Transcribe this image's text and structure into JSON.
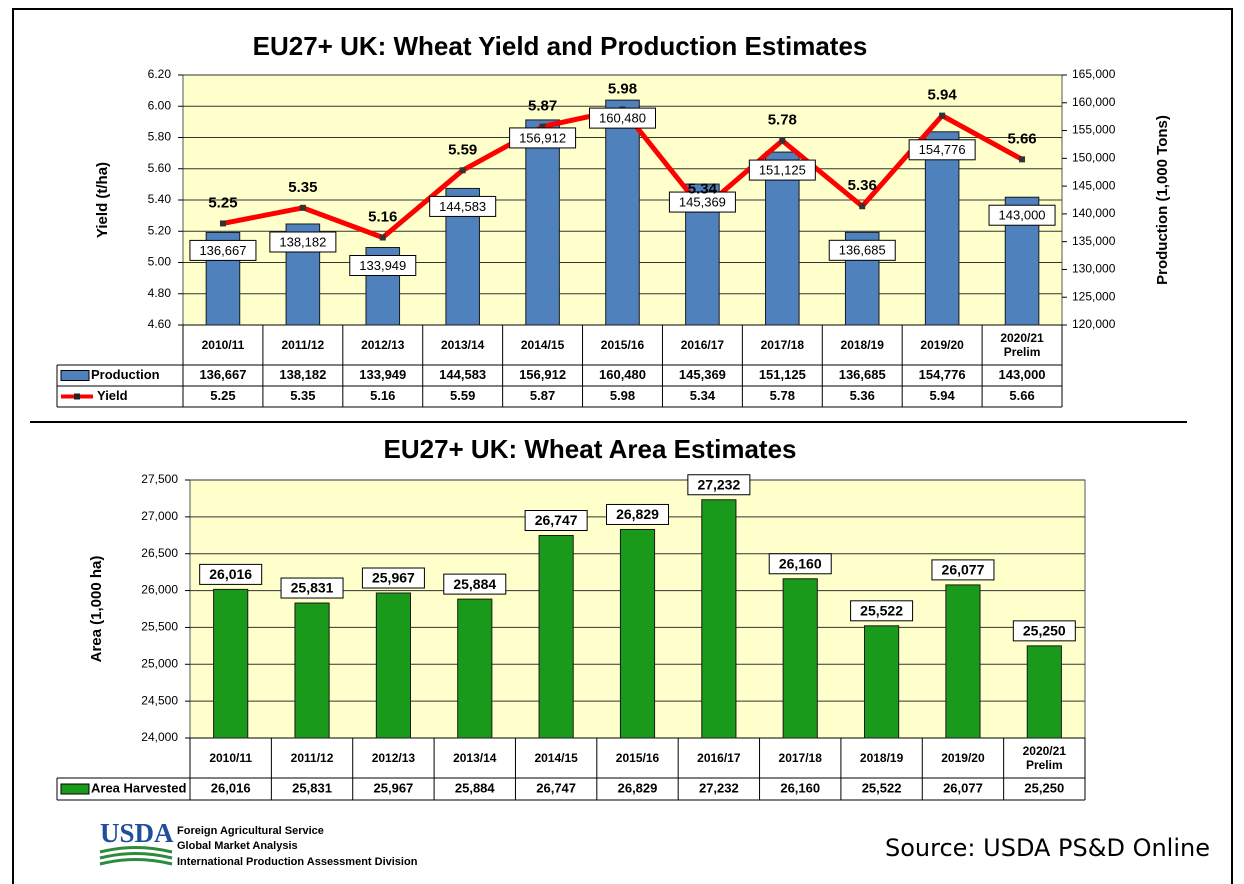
{
  "chart_data": [
    {
      "type": "bar_line",
      "title": "EU27+ UK: Wheat Yield and Production Estimates",
      "ylabel": "Yield (t/ha)",
      "y2label": "Production (1,000 Tons)",
      "categories": [
        "2010/11",
        "2011/12",
        "2012/13",
        "2013/14",
        "2014/15",
        "2015/16",
        "2016/17",
        "2017/18",
        "2018/19",
        "2019/20",
        "2020/21 Prelim"
      ],
      "series": [
        {
          "name": "Production",
          "type": "bar",
          "axis": "y2",
          "color": "#4f81bd",
          "values": [
            136667,
            138182,
            133949,
            144583,
            156912,
            160480,
            145369,
            151125,
            136685,
            154776,
            143000
          ],
          "value_labels": [
            "136,667",
            "138,182",
            "133,949",
            "144,583",
            "156,912",
            "160,480",
            "145,369",
            "151,125",
            "136,685",
            "154,776",
            "143,000"
          ]
        },
        {
          "name": "Yield",
          "type": "line",
          "axis": "y",
          "color": "#ff0000",
          "values": [
            5.25,
            5.35,
            5.16,
            5.59,
            5.87,
            5.98,
            5.34,
            5.78,
            5.36,
            5.94,
            5.66
          ]
        }
      ],
      "ylim": [
        4.6,
        6.2
      ],
      "yticks": [
        {
          "value": 4.6,
          "label": "4.60"
        },
        {
          "value": 4.8,
          "label": "4.80"
        },
        {
          "value": 5.0,
          "label": "5.00"
        },
        {
          "value": 5.2,
          "label": "5.20"
        },
        {
          "value": 5.4,
          "label": "5.40"
        },
        {
          "value": 5.6,
          "label": "5.60"
        },
        {
          "value": 5.8,
          "label": "5.80"
        },
        {
          "value": 6.0,
          "label": "6.00"
        },
        {
          "value": 6.2,
          "label": "6.20"
        }
      ],
      "y2lim": [
        120000,
        165000
      ],
      "y2ticks": [
        {
          "value": 120000,
          "label": "120,000"
        },
        {
          "value": 125000,
          "label": "125,000"
        },
        {
          "value": 130000,
          "label": "130,000"
        },
        {
          "value": 135000,
          "label": "135,000"
        },
        {
          "value": 140000,
          "label": "140,000"
        },
        {
          "value": 145000,
          "label": "145,000"
        },
        {
          "value": 150000,
          "label": "150,000"
        },
        {
          "value": 155000,
          "label": "155,000"
        },
        {
          "value": 160000,
          "label": "160,000"
        },
        {
          "value": 165000,
          "label": "165,000"
        }
      ],
      "grid": true
    },
    {
      "type": "bar",
      "title": "EU27+ UK: Wheat Area Estimates",
      "ylabel": "Area  (1,000 ha)",
      "categories": [
        "2010/11",
        "2011/12",
        "2012/13",
        "2013/14",
        "2014/15",
        "2015/16",
        "2016/17",
        "2017/18",
        "2018/19",
        "2019/20",
        "2020/21 Prelim"
      ],
      "series": [
        {
          "name": "Area Harvested",
          "type": "bar",
          "axis": "y",
          "color": "#1a9a1a",
          "values": [
            26016,
            25831,
            25967,
            25884,
            26747,
            26829,
            27232,
            26160,
            25522,
            26077,
            25250
          ],
          "value_labels": [
            "26,016",
            "25,831",
            "25,967",
            "25,884",
            "26,747",
            "26,829",
            "27,232",
            "26,160",
            "25,522",
            "26,077",
            "25,250"
          ]
        }
      ],
      "ylim": [
        24000,
        27500
      ],
      "yticks": [
        {
          "value": 24000,
          "label": "24,000"
        },
        {
          "value": 24500,
          "label": "24,500"
        },
        {
          "value": 25000,
          "label": "25,000"
        },
        {
          "value": 25500,
          "label": "25,500"
        },
        {
          "value": 26000,
          "label": "26,000"
        },
        {
          "value": 26500,
          "label": "26,500"
        },
        {
          "value": 27000,
          "label": "27,000"
        },
        {
          "value": 27500,
          "label": "27,500"
        }
      ],
      "grid": true
    }
  ],
  "footer": {
    "logo": "USDA",
    "agency": "Foreign Agricultural Service",
    "office": "Global Market Analysis",
    "division": "International Production Assessment Division",
    "source": "Source: USDA PS&D Online"
  }
}
